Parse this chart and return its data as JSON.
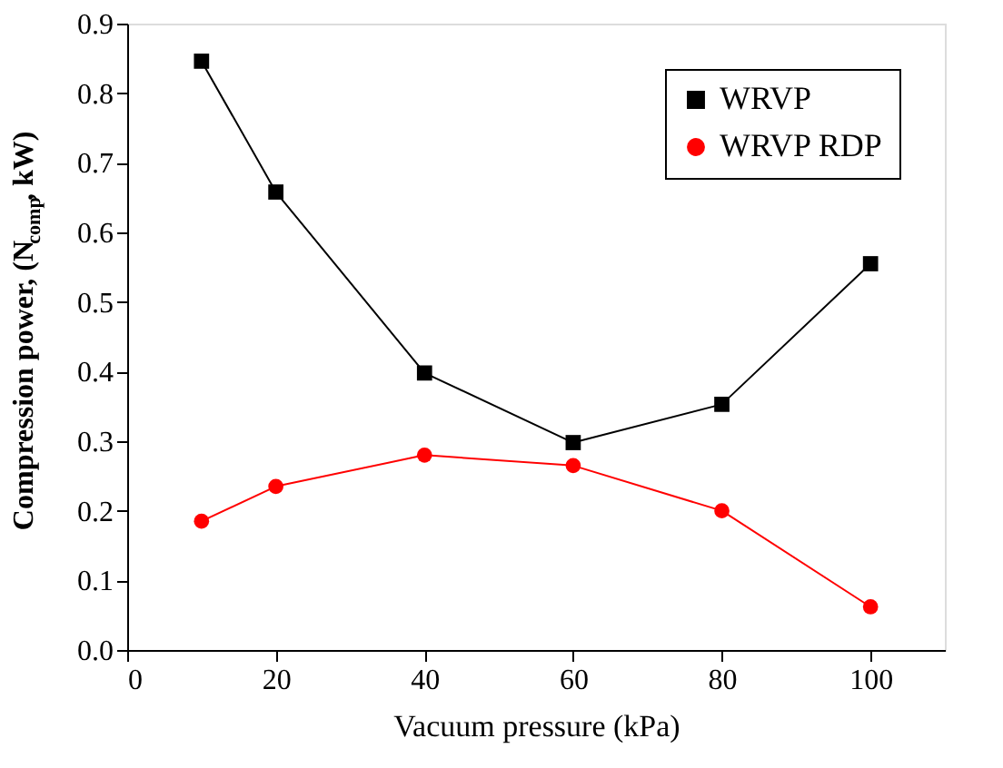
{
  "chart_data": {
    "type": "line",
    "xlabel": "Vacuum pressure (kPa)",
    "ylabel": "Compression power, (N$_{comp}$, kW)",
    "x": [
      10,
      20,
      40,
      60,
      80,
      100
    ],
    "series": [
      {
        "name": "WRVP",
        "color": "#000000",
        "marker": "square",
        "values": [
          0.846,
          0.658,
          0.398,
          0.298,
          0.353,
          0.555
        ]
      },
      {
        "name": "WRVP RDP",
        "color": "#ff0000",
        "marker": "circle",
        "values": [
          0.185,
          0.235,
          0.28,
          0.265,
          0.2,
          0.062
        ]
      }
    ],
    "xlim": [
      0,
      110
    ],
    "xticks": [
      0,
      20,
      40,
      60,
      80,
      100
    ],
    "ylim": [
      0,
      0.9
    ],
    "yticks": [
      {
        "value": 0,
        "label": "0.0"
      },
      0.1,
      0.2,
      0.3,
      0.4,
      0.5,
      0.6,
      0.7,
      0.8,
      0.9
    ],
    "legend": "top right",
    "grid": false,
    "line_style": "solid"
  }
}
